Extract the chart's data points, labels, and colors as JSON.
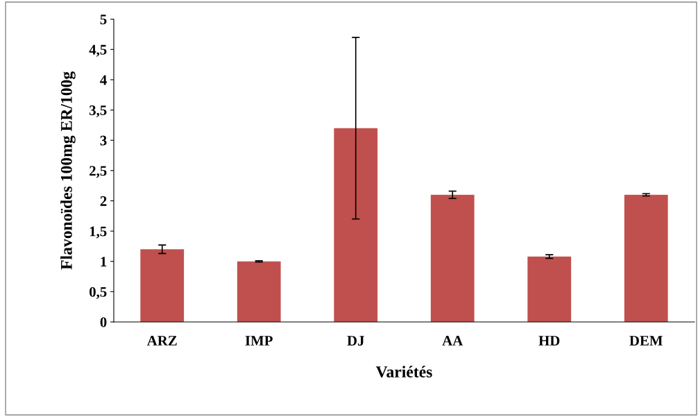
{
  "chart_data": {
    "type": "bar",
    "xlabel": "Variétés",
    "ylabel": "Flavonoïdes 100mg ER/100g",
    "categories": [
      "ARZ",
      "IMP",
      "DJ",
      "AA",
      "HD",
      "DEM"
    ],
    "values": [
      1.2,
      1.0,
      3.2,
      2.1,
      1.08,
      2.1
    ],
    "errors": [
      0.07,
      0.01,
      1.5,
      0.06,
      0.03,
      0.02
    ],
    "color": "#c0504d",
    "ylim": [
      0,
      5
    ],
    "yticks": [
      0,
      {
        "value": 0.5,
        "label": "0,5"
      },
      1,
      {
        "value": 1.5,
        "label": "1,5"
      },
      2,
      {
        "value": 2.5,
        "label": "2,5"
      },
      3,
      {
        "value": 3.5,
        "label": "3,5"
      },
      4,
      {
        "value": 4.5,
        "label": "4,5"
      },
      5
    ],
    "grid": false,
    "legend": false
  }
}
